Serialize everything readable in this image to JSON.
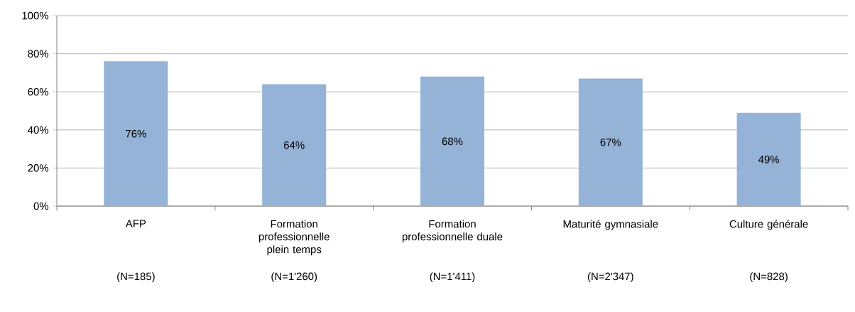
{
  "chart_data": {
    "type": "bar",
    "categories": [
      "AFP",
      "Formation professionnelle plein temps",
      "Formation professionnelle duale",
      "Maturité gymnasiale",
      "Culture générale"
    ],
    "values": [
      76,
      64,
      68,
      67,
      49
    ],
    "value_labels": [
      "76%",
      "64%",
      "68%",
      "67%",
      "49%"
    ],
    "color": "#95b3d7",
    "ylim": [
      0,
      100
    ],
    "yticks": [
      {
        "value": 0,
        "label": "0%"
      },
      {
        "value": 20,
        "label": "20%"
      },
      {
        "value": 40,
        "label": "40%"
      },
      {
        "value": 60,
        "label": "60%"
      },
      {
        "value": 80,
        "label": "80%"
      },
      {
        "value": 100,
        "label": "100%"
      }
    ],
    "grid": "y",
    "annotations": [
      "(N=185)",
      "(N=1'260)",
      "(N=1'411)",
      "(N=2'347)",
      "(N=828)"
    ]
  }
}
